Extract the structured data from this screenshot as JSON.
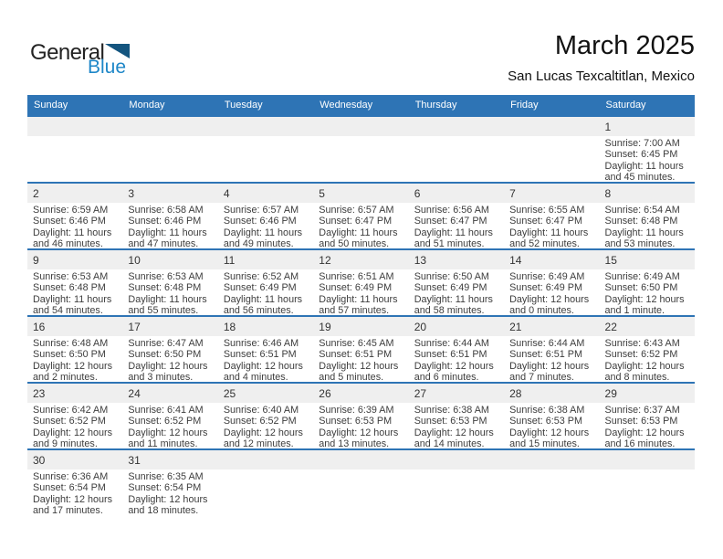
{
  "logo": {
    "part1": "General",
    "part2": "Blue"
  },
  "header": {
    "title": "March 2025",
    "subtitle": "San Lucas Texcaltitlan, Mexico"
  },
  "colors": {
    "header_bg": "#2E74B5",
    "row_divider": "#2E74B5",
    "day_band_bg": "#EFEFEF",
    "logo_blue": "#1E87C8",
    "logo_triangle": "#14557F"
  },
  "icons": {
    "logo_triangle_icon": "flag-triangle"
  },
  "calendar": {
    "weekday_headers": [
      "Sunday",
      "Monday",
      "Tuesday",
      "Wednesday",
      "Thursday",
      "Friday",
      "Saturday"
    ],
    "labels": {
      "sunrise": "Sunrise:",
      "sunset": "Sunset:",
      "daylight": "Daylight:"
    },
    "weeks": [
      [
        null,
        null,
        null,
        null,
        null,
        null,
        {
          "day": 1,
          "sunrise": "7:00 AM",
          "sunset": "6:45 PM",
          "daylight": "11 hours and 45 minutes."
        }
      ],
      [
        {
          "day": 2,
          "sunrise": "6:59 AM",
          "sunset": "6:46 PM",
          "daylight": "11 hours and 46 minutes."
        },
        {
          "day": 3,
          "sunrise": "6:58 AM",
          "sunset": "6:46 PM",
          "daylight": "11 hours and 47 minutes."
        },
        {
          "day": 4,
          "sunrise": "6:57 AM",
          "sunset": "6:46 PM",
          "daylight": "11 hours and 49 minutes."
        },
        {
          "day": 5,
          "sunrise": "6:57 AM",
          "sunset": "6:47 PM",
          "daylight": "11 hours and 50 minutes."
        },
        {
          "day": 6,
          "sunrise": "6:56 AM",
          "sunset": "6:47 PM",
          "daylight": "11 hours and 51 minutes."
        },
        {
          "day": 7,
          "sunrise": "6:55 AM",
          "sunset": "6:47 PM",
          "daylight": "11 hours and 52 minutes."
        },
        {
          "day": 8,
          "sunrise": "6:54 AM",
          "sunset": "6:48 PM",
          "daylight": "11 hours and 53 minutes."
        }
      ],
      [
        {
          "day": 9,
          "sunrise": "6:53 AM",
          "sunset": "6:48 PM",
          "daylight": "11 hours and 54 minutes."
        },
        {
          "day": 10,
          "sunrise": "6:53 AM",
          "sunset": "6:48 PM",
          "daylight": "11 hours and 55 minutes."
        },
        {
          "day": 11,
          "sunrise": "6:52 AM",
          "sunset": "6:49 PM",
          "daylight": "11 hours and 56 minutes."
        },
        {
          "day": 12,
          "sunrise": "6:51 AM",
          "sunset": "6:49 PM",
          "daylight": "11 hours and 57 minutes."
        },
        {
          "day": 13,
          "sunrise": "6:50 AM",
          "sunset": "6:49 PM",
          "daylight": "11 hours and 58 minutes."
        },
        {
          "day": 14,
          "sunrise": "6:49 AM",
          "sunset": "6:49 PM",
          "daylight": "12 hours and 0 minutes."
        },
        {
          "day": 15,
          "sunrise": "6:49 AM",
          "sunset": "6:50 PM",
          "daylight": "12 hours and 1 minute."
        }
      ],
      [
        {
          "day": 16,
          "sunrise": "6:48 AM",
          "sunset": "6:50 PM",
          "daylight": "12 hours and 2 minutes."
        },
        {
          "day": 17,
          "sunrise": "6:47 AM",
          "sunset": "6:50 PM",
          "daylight": "12 hours and 3 minutes."
        },
        {
          "day": 18,
          "sunrise": "6:46 AM",
          "sunset": "6:51 PM",
          "daylight": "12 hours and 4 minutes."
        },
        {
          "day": 19,
          "sunrise": "6:45 AM",
          "sunset": "6:51 PM",
          "daylight": "12 hours and 5 minutes."
        },
        {
          "day": 20,
          "sunrise": "6:44 AM",
          "sunset": "6:51 PM",
          "daylight": "12 hours and 6 minutes."
        },
        {
          "day": 21,
          "sunrise": "6:44 AM",
          "sunset": "6:51 PM",
          "daylight": "12 hours and 7 minutes."
        },
        {
          "day": 22,
          "sunrise": "6:43 AM",
          "sunset": "6:52 PM",
          "daylight": "12 hours and 8 minutes."
        }
      ],
      [
        {
          "day": 23,
          "sunrise": "6:42 AM",
          "sunset": "6:52 PM",
          "daylight": "12 hours and 9 minutes."
        },
        {
          "day": 24,
          "sunrise": "6:41 AM",
          "sunset": "6:52 PM",
          "daylight": "12 hours and 11 minutes."
        },
        {
          "day": 25,
          "sunrise": "6:40 AM",
          "sunset": "6:52 PM",
          "daylight": "12 hours and 12 minutes."
        },
        {
          "day": 26,
          "sunrise": "6:39 AM",
          "sunset": "6:53 PM",
          "daylight": "12 hours and 13 minutes."
        },
        {
          "day": 27,
          "sunrise": "6:38 AM",
          "sunset": "6:53 PM",
          "daylight": "12 hours and 14 minutes."
        },
        {
          "day": 28,
          "sunrise": "6:38 AM",
          "sunset": "6:53 PM",
          "daylight": "12 hours and 15 minutes."
        },
        {
          "day": 29,
          "sunrise": "6:37 AM",
          "sunset": "6:53 PM",
          "daylight": "12 hours and 16 minutes."
        }
      ],
      [
        {
          "day": 30,
          "sunrise": "6:36 AM",
          "sunset": "6:54 PM",
          "daylight": "12 hours and 17 minutes."
        },
        {
          "day": 31,
          "sunrise": "6:35 AM",
          "sunset": "6:54 PM",
          "daylight": "12 hours and 18 minutes."
        },
        null,
        null,
        null,
        null,
        null
      ]
    ]
  }
}
